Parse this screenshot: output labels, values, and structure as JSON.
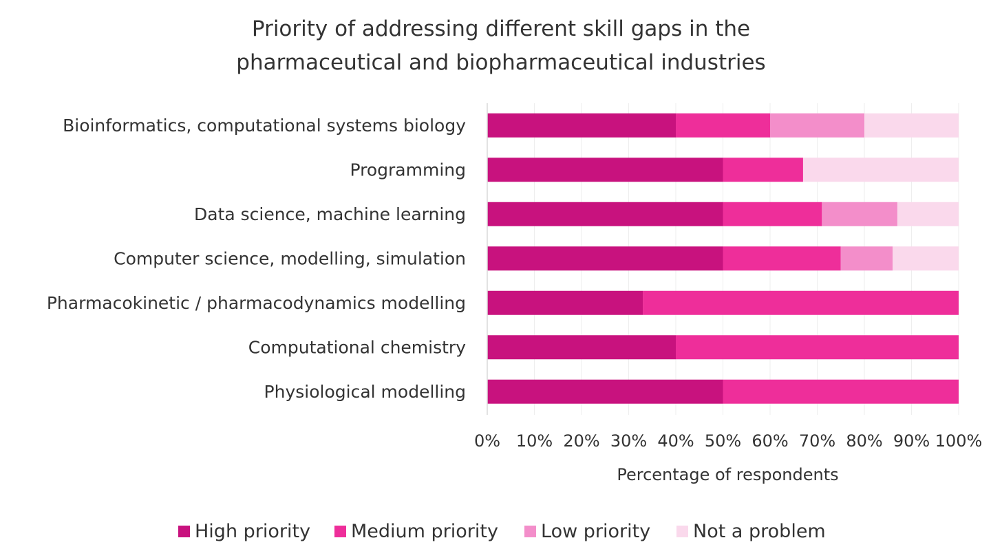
{
  "chart_data": {
    "type": "bar",
    "orientation": "horizontal",
    "stacked": true,
    "title": [
      "Priority of addressing different skill gaps in the",
      "pharmaceutical and biopharmaceutical industries"
    ],
    "xlabel": "Percentage of respondents",
    "ylabel": "",
    "xlim": [
      0,
      100
    ],
    "x_ticks": [
      "0%",
      "10%",
      "20%",
      "30%",
      "40%",
      "50%",
      "60%",
      "70%",
      "80%",
      "90%",
      "100%"
    ],
    "grid": true,
    "legend_position": "bottom",
    "categories": [
      "Bioinformatics, computational systems biology",
      "Programming",
      "Data science, machine learning",
      "Computer science, modelling, simulation",
      "Pharmacokinetic / pharmacodynamics modelling",
      "Computational chemistry",
      "Physiological modelling"
    ],
    "series": [
      {
        "name": "High priority",
        "color": "#C8127E",
        "values": [
          40,
          50,
          50,
          50,
          33,
          40,
          50
        ]
      },
      {
        "name": "Medium priority",
        "color": "#EE2E9A",
        "values": [
          20,
          17,
          21,
          25,
          67,
          60,
          50
        ]
      },
      {
        "name": "Low priority",
        "color": "#F38ECA",
        "values": [
          20,
          0,
          16,
          11,
          0,
          0,
          0
        ]
      },
      {
        "name": "Not a problem",
        "color": "#FAD9EC",
        "values": [
          20,
          33,
          13,
          14,
          0,
          0,
          0
        ]
      }
    ]
  }
}
